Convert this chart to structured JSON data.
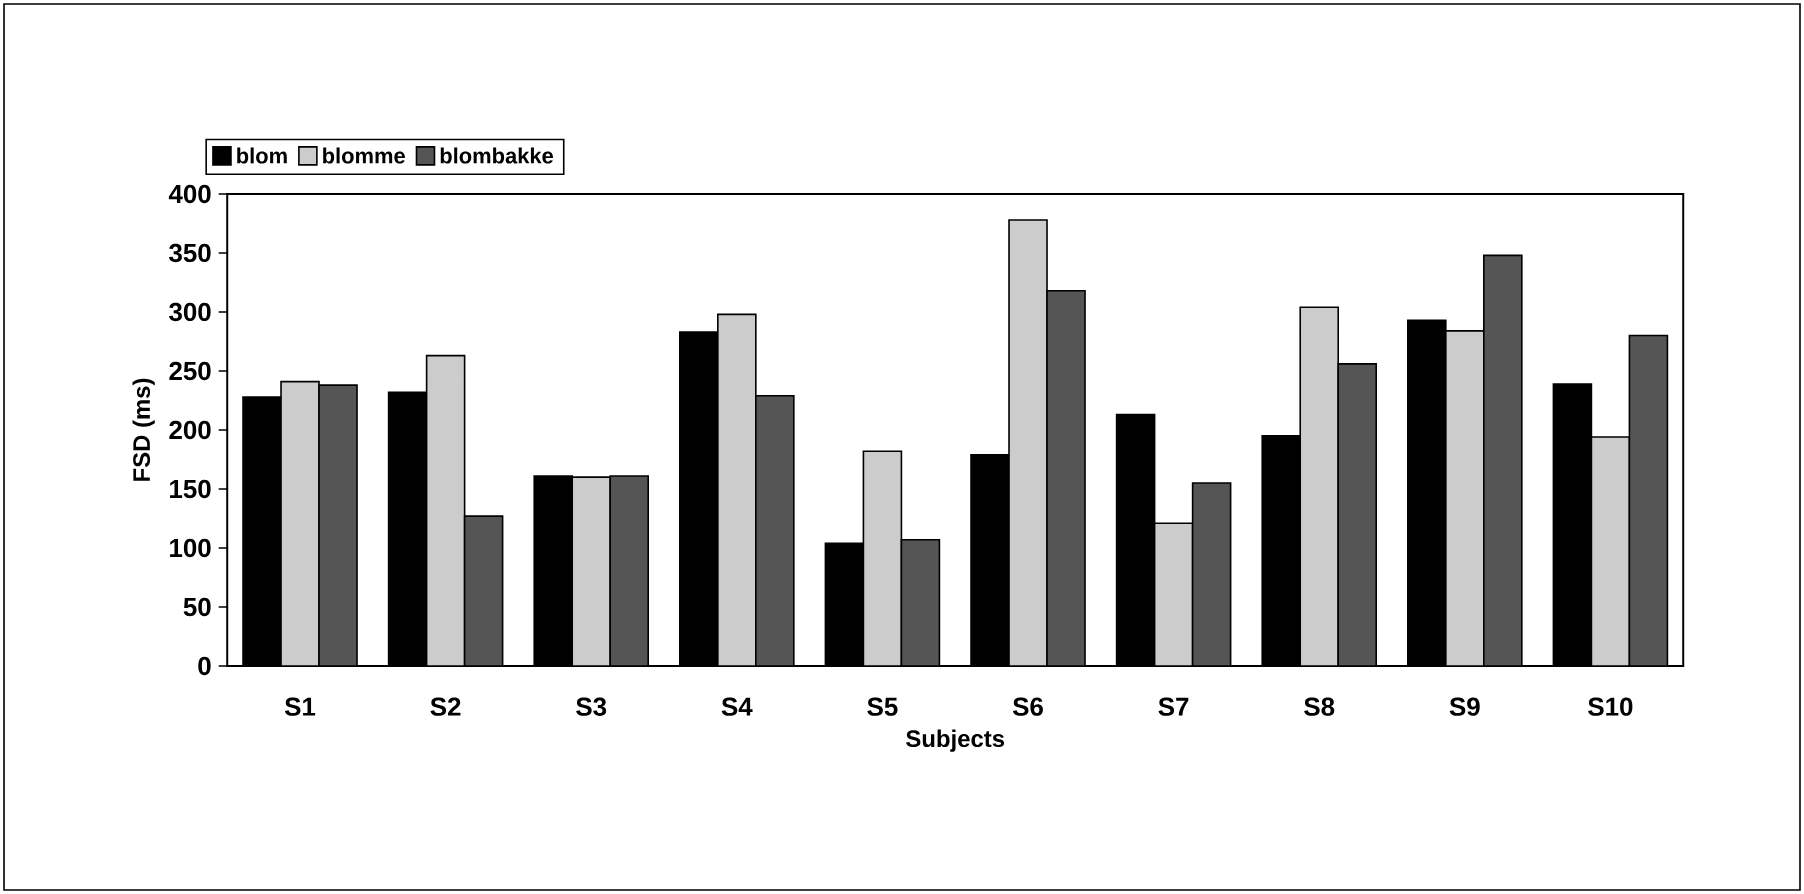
{
  "chart_data": {
    "type": "bar",
    "xlabel": "Subjects",
    "ylabel": "FSD (ms)",
    "categories": [
      "S1",
      "S2",
      "S3",
      "S4",
      "S5",
      "S6",
      "S7",
      "S8",
      "S9",
      "S10"
    ],
    "series": [
      {
        "name": "blom",
        "color": "#000000",
        "values": [
          228,
          232,
          161,
          283,
          104,
          179,
          213,
          195,
          293,
          239
        ]
      },
      {
        "name": "blomme",
        "color": "#cccccc",
        "values": [
          241,
          263,
          160,
          298,
          182,
          378,
          121,
          304,
          284,
          194
        ]
      },
      {
        "name": "blombakke",
        "color": "#555555",
        "values": [
          238,
          127,
          161,
          229,
          107,
          318,
          155,
          256,
          348,
          280
        ]
      }
    ],
    "ylim": [
      0,
      400
    ],
    "yticks": [
      0,
      50,
      100,
      150,
      200,
      250,
      300,
      350,
      400
    ],
    "grid": false,
    "legend": "top left"
  }
}
